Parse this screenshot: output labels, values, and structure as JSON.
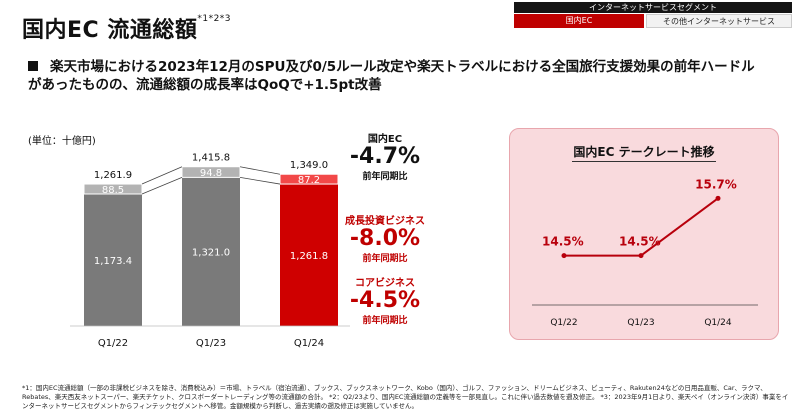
{
  "header": {
    "title": "国内EC 流通総額",
    "title_note": "*1*2*3",
    "segment_header": "インターネットサービスセグメント",
    "segment_tabs": [
      "国内EC",
      "その他インターネットサービス"
    ]
  },
  "lead_text": "楽天市場における2023年12月のSPU及び0/5ルール改定や楽天トラベルにおける全国旅行支援効果の前年ハードルがあったものの、流通総額の成長率はQoQで+1.5pt改善",
  "unit_label": "(単位：十億円)",
  "chart_data": [
    {
      "type": "bar",
      "stacked": true,
      "categories": [
        "Q1/22",
        "Q1/23",
        "Q1/24"
      ],
      "series": [
        {
          "name": "コアビジネス",
          "values": [
            1173.4,
            1321.0,
            1261.8
          ]
        },
        {
          "name": "成長投資ビジネス",
          "values": [
            88.5,
            94.8,
            87.2
          ]
        }
      ],
      "totals": [
        1261.9,
        1415.8,
        1349.0
      ],
      "colors": {
        "core": "#7a7a7a",
        "growth": "#b3b3b3",
        "highlight_core": "#cf0000",
        "highlight_growth": "#f24848"
      },
      "labels": {
        "totals": [
          "1,261.9",
          "1,415.8",
          "1,349.0"
        ],
        "growth": [
          "88.5",
          "94.8",
          "87.2"
        ],
        "core": [
          "1,173.4",
          "1,321.0",
          "1,261.8"
        ]
      }
    },
    {
      "type": "line",
      "title": "国内EC テークレート推移",
      "categories": [
        "Q1/22",
        "Q1/23",
        "Q1/24"
      ],
      "values": [
        14.5,
        14.5,
        15.7
      ],
      "value_labels": [
        "14.5%",
        "14.5%",
        "15.7%"
      ],
      "ylim": [
        13.8,
        16.0
      ],
      "color": "#b8000c"
    }
  ],
  "stats": {
    "total": {
      "label": "国内EC",
      "value": "-4.7%",
      "sub": "前年同期比"
    },
    "growth": {
      "label": "成長投資ビジネス",
      "value": "-8.0%",
      "sub": "前年同期比"
    },
    "core": {
      "label": "コアビジネス",
      "value": "-4.5%",
      "sub": "前年同期比"
    }
  },
  "footnote": "*1：国内EC流通総額（一部の非課税ビジネスを除き、消費税込み）＝市場、トラベル（宿泊流通）、ブックス、ブックスネットワーク、Kobo（国内）、ゴルフ、ファッション、ドリームビジネス、ビューティ、Rakuten24などの日用品直販、Car、ラクマ、Rebates、楽天西友ネットスーパー、楽天チケット、クロスボーダートレーディング等の流通額の合計。 *2：Q2/23より、国内EC流通総額の定義等を一部見直し。これに伴い過去数値を遡及修正。 *3：2023年9月1日より、楽天ペイ（オンライン決済）事業をインターネットサービスセグメントからフィンテックセグメントへ移管。金額規模から判断し、過去実績の遡及修正は実施していません。"
}
